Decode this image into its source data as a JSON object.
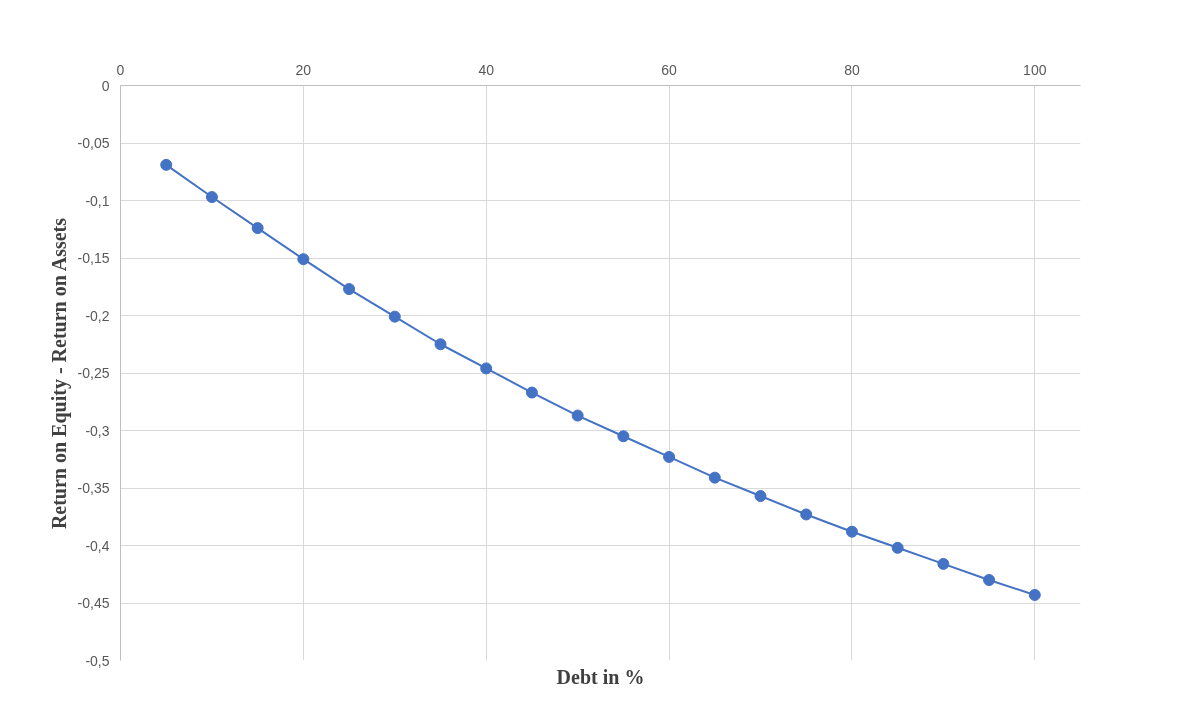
{
  "chart_data": {
    "type": "line",
    "xlabel": "Debt in %",
    "ylabel": "Return on Equity - Return on Assets",
    "x": [
      5,
      10,
      15,
      20,
      25,
      30,
      35,
      40,
      45,
      50,
      55,
      60,
      65,
      70,
      75,
      80,
      85,
      90,
      95,
      100
    ],
    "series": [
      {
        "color": "#4472c4",
        "values": [
          -0.069,
          -0.097,
          -0.124,
          -0.151,
          -0.177,
          -0.201,
          -0.225,
          -0.246,
          -0.267,
          -0.287,
          -0.305,
          -0.323,
          -0.341,
          -0.357,
          -0.373,
          -0.388,
          -0.402,
          -0.416,
          -0.43,
          -0.443
        ]
      }
    ],
    "xlim": [
      0,
      105
    ],
    "xticks": [
      0,
      20,
      40,
      60,
      80,
      100
    ],
    "ylim": [
      -0.5,
      0
    ],
    "yticks": [
      0,
      {
        "value": -0.05,
        "label": "-0,05"
      },
      {
        "value": -0.1,
        "label": "-0,1"
      },
      {
        "value": -0.15,
        "label": "-0,15"
      },
      {
        "value": -0.2,
        "label": "-0,2"
      },
      {
        "value": -0.25,
        "label": "-0,25"
      },
      {
        "value": -0.3,
        "label": "-0,3"
      },
      {
        "value": -0.35,
        "label": "-0,35"
      },
      {
        "value": -0.4,
        "label": "-0,4"
      },
      {
        "value": -0.45,
        "label": "-0,45"
      },
      {
        "value": -0.5,
        "label": "-0,5"
      }
    ],
    "grid": true,
    "marker": "circle",
    "line_style": "solid"
  }
}
